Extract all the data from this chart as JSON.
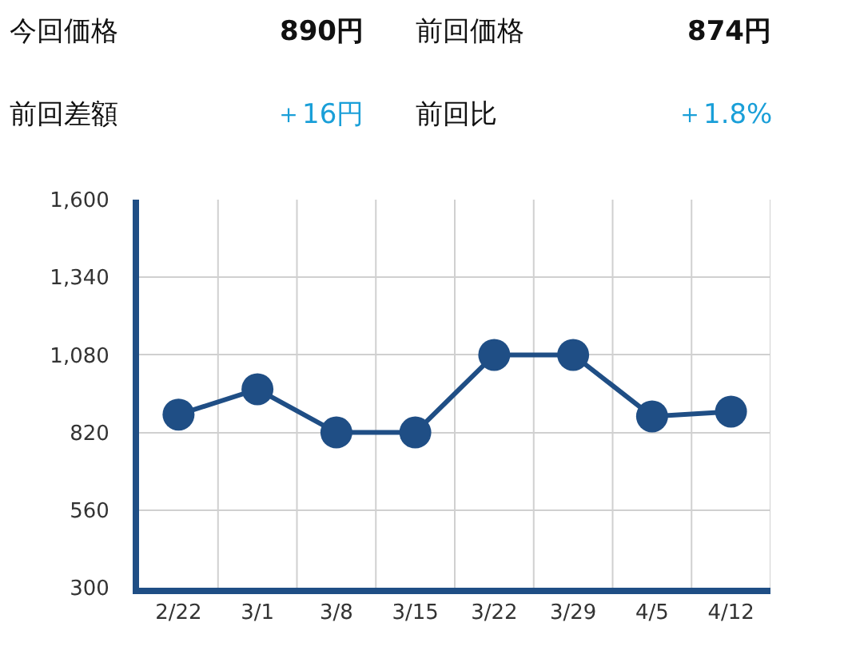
{
  "chart_data": [
    {
      "type": "other",
      "annotations": [
        "今回価格",
        "890円",
        "前回価格",
        "874円",
        "前回差額",
        "＋16円",
        "前回比",
        "＋1.8%"
      ]
    },
    {
      "type": "line",
      "categories": [
        "2/22",
        "3/1",
        "3/8",
        "3/15",
        "3/22",
        "3/29",
        "4/5",
        "4/12"
      ],
      "series": [
        {
          "color": "#1f4e85",
          "values": [
            880,
            965,
            820,
            820,
            1080,
            1080,
            874,
            890
          ]
        }
      ],
      "ylim": [
        300,
        1600
      ],
      "yticks": [
        300,
        560,
        820,
        {
          "value": 1080,
          "label": "1,080"
        },
        {
          "value": 1340,
          "label": "1,340"
        },
        {
          "value": 1600,
          "label": "1,600"
        }
      ],
      "grid": true,
      "marker": "circle",
      "line_style": "solid"
    }
  ]
}
